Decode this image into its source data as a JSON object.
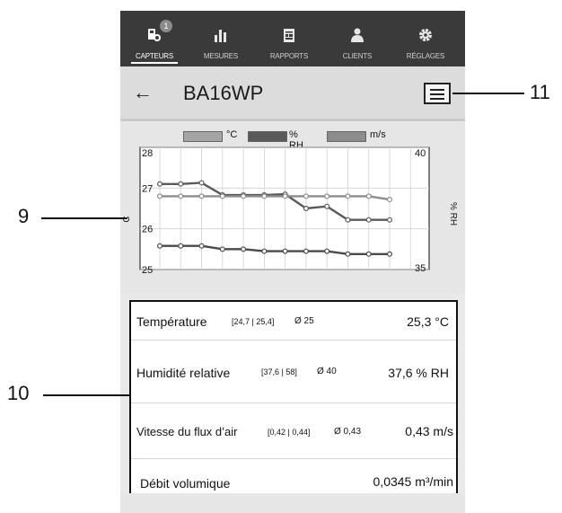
{
  "nav": {
    "items": [
      {
        "label": "CAPTEURS",
        "icon": "sensors-icon",
        "active": true,
        "badge": "1"
      },
      {
        "label": "MESURES",
        "icon": "bar-chart-icon",
        "active": false
      },
      {
        "label": "RAPPORTS",
        "icon": "report-icon",
        "active": false
      },
      {
        "label": "CLIENTS",
        "icon": "clients-icon",
        "active": false
      },
      {
        "label": "RÉGLAGES",
        "icon": "gear-icon",
        "active": false
      }
    ]
  },
  "header": {
    "back_icon": "arrow-left-icon",
    "title": "BA16WP",
    "menu_icon": "hamburger-menu-icon"
  },
  "chart_data": {
    "type": "line",
    "legend": [
      "°C",
      "% RH",
      "m/s"
    ],
    "legend_colors": [
      "#a5a5a5",
      "#5a5a5a",
      "#8c8c8c"
    ],
    "ylabel_left": "C",
    "ylabel_right": "% RH",
    "left_axis": {
      "ticks": [
        "28",
        "27",
        "26",
        "25"
      ],
      "range": [
        25,
        28
      ]
    },
    "right_axis": {
      "ticks": [
        "40",
        "35"
      ],
      "range": [
        35,
        40
      ]
    },
    "series": [
      {
        "values": [
          27.1,
          27.1,
          27.13,
          26.83,
          26.83,
          26.83,
          26.85,
          26.5,
          26.55,
          26.22,
          26.22,
          26.22
        ]
      },
      {
        "values": [
          26.8,
          26.8,
          26.8,
          26.8,
          26.8,
          26.8,
          26.8,
          26.8,
          26.8,
          26.8,
          26.8,
          26.72
        ]
      },
      {
        "values": [
          25.58,
          25.58,
          25.58,
          25.5,
          25.5,
          25.45,
          25.45,
          25.45,
          25.45,
          25.38,
          25.38,
          25.38
        ]
      }
    ],
    "grid": true
  },
  "measurements": [
    {
      "name": "Température",
      "range": "[24,7 | 25,4]",
      "avg": "Ø 25",
      "value": "25,3 °C"
    },
    {
      "name": "Humidité relative",
      "range": "[37,6 | 58]",
      "avg": "Ø 40",
      "value": "37,6 % RH"
    },
    {
      "name": "Vitesse du flux d’air",
      "range": "[0,42 | 0,44]",
      "avg": "Ø 0,43",
      "value": "0,43 m/s"
    },
    {
      "name": "Débit volumique",
      "range": "",
      "avg": "",
      "value": "0,0345 m³/min"
    }
  ],
  "callouts": {
    "c9": "9",
    "c10": "10",
    "c11": "11"
  }
}
